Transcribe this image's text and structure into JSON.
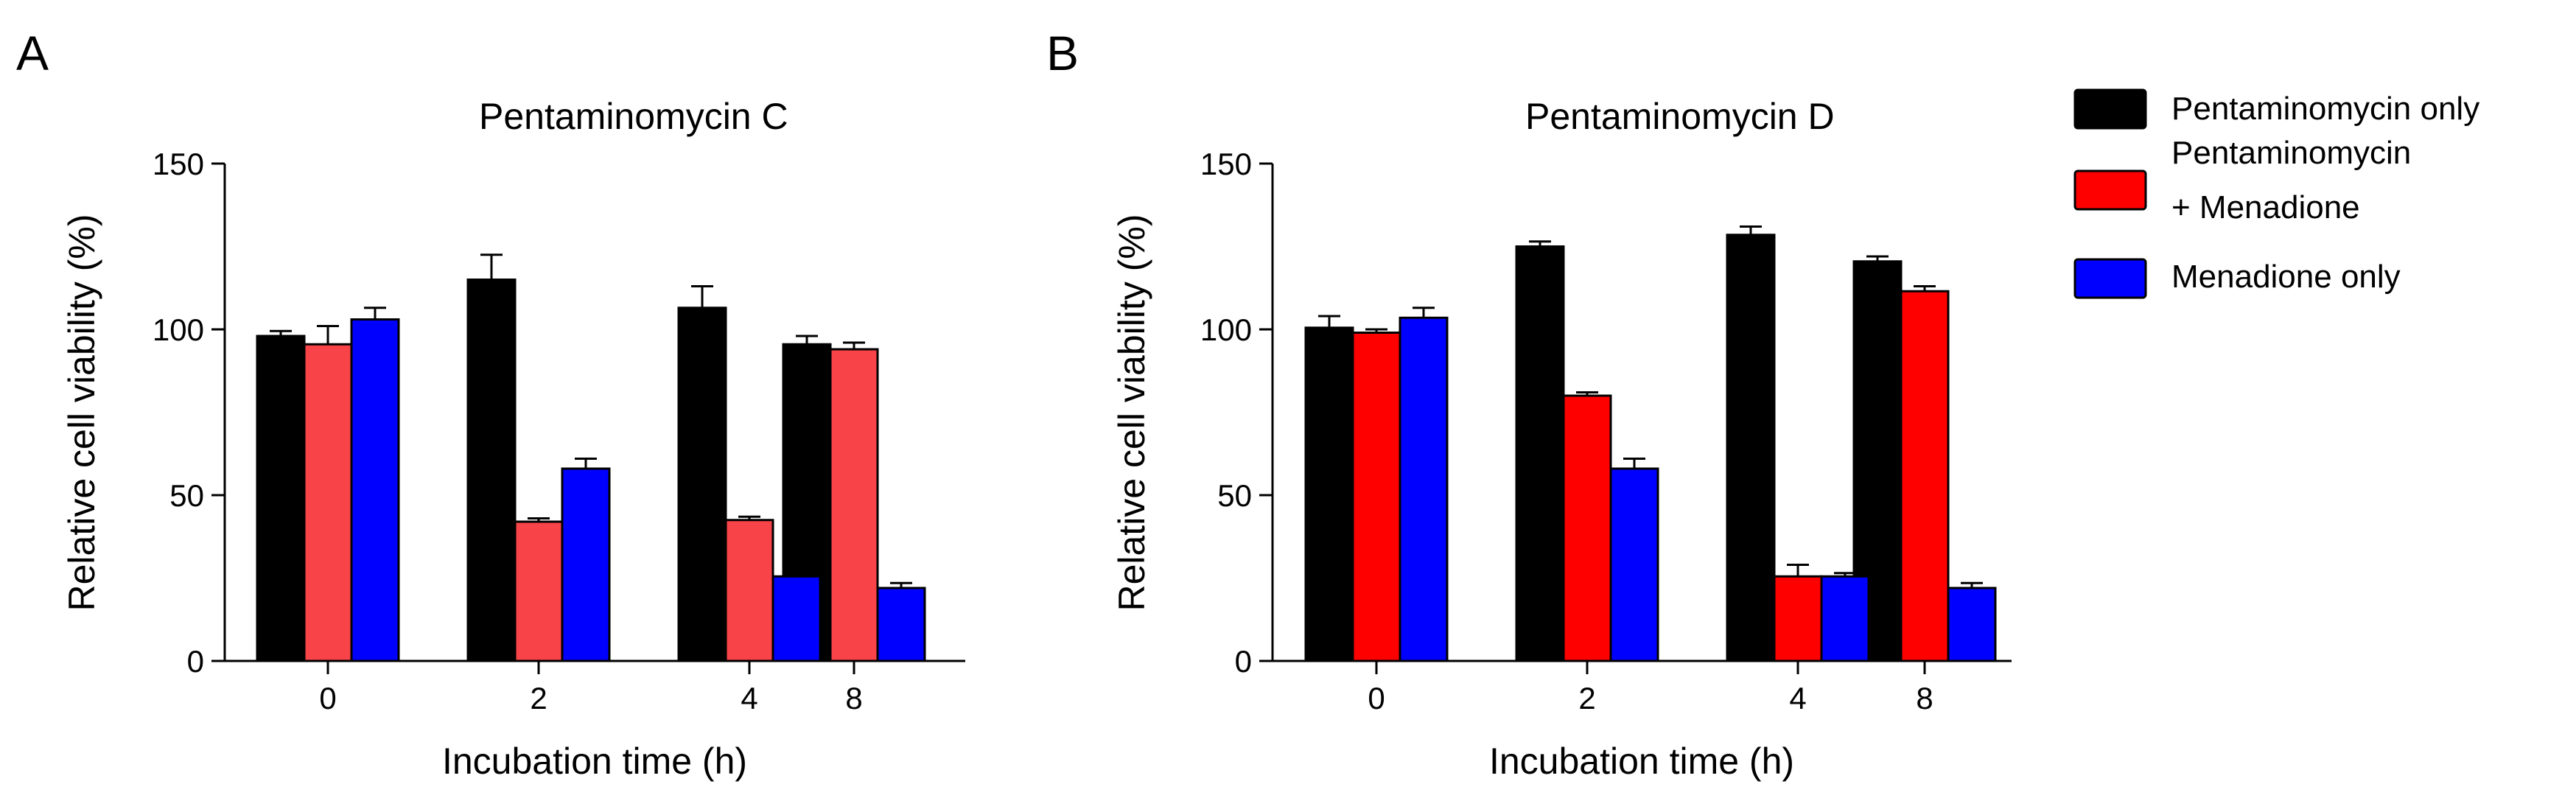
{
  "chart_data": [
    {
      "type": "bar",
      "panel": "A",
      "title": "Pentaminomycin C",
      "xlabel": "Incubation time (h)",
      "ylabel": "Relative cell viability (%)",
      "ylim": [
        0,
        150
      ],
      "yticks": [
        0,
        50,
        100,
        150
      ],
      "categories": [
        "0",
        "2",
        "4",
        "8"
      ],
      "grid": false,
      "series": [
        {
          "name": "Pentaminomycin only",
          "color": "#000000",
          "values": [
            98,
            115,
            106.5,
            95.5
          ],
          "errors": [
            1.5,
            7.5,
            6.5,
            2.5
          ]
        },
        {
          "name": "Pentaminomycin\n + Menadione",
          "color": "#f84448",
          "values": [
            95.5,
            42,
            42.5,
            94
          ],
          "errors": [
            5.5,
            1,
            1,
            2
          ]
        },
        {
          "name": "Menadione only",
          "color": "#0000ff",
          "values": [
            103,
            58,
            25.5,
            22
          ],
          "errors": [
            3.5,
            3,
            1,
            1.5
          ]
        }
      ]
    },
    {
      "type": "bar",
      "panel": "B",
      "title": "Pentaminomycin D",
      "xlabel": "Incubation time (h)",
      "ylabel": "Relative cell viability (%)",
      "ylim": [
        0,
        150
      ],
      "yticks": [
        0,
        50,
        100,
        150
      ],
      "categories": [
        "0",
        "2",
        "4",
        "8"
      ],
      "grid": false,
      "series": [
        {
          "name": "Pentaminomycin only",
          "color": "#000000",
          "values": [
            100.5,
            125,
            128.5,
            120.5
          ],
          "errors": [
            3.5,
            1.5,
            2.5,
            1.5
          ]
        },
        {
          "name": "Pentaminomycin\n + Menadione",
          "color": "#ff0000",
          "values": [
            99,
            80,
            25.5,
            111.5
          ],
          "errors": [
            1,
            1,
            3.5,
            1.5
          ]
        },
        {
          "name": "Menadione only",
          "color": "#0000ff",
          "values": [
            103.5,
            58,
            25.5,
            22
          ],
          "errors": [
            3,
            3,
            1,
            1.5
          ]
        }
      ]
    }
  ],
  "legend": {
    "placement": "right",
    "items": [
      {
        "label_lines": [
          "Pentaminomycin only"
        ],
        "color": "#000000"
      },
      {
        "label_lines": [
          "Pentaminomycin",
          " + Menadione"
        ],
        "color": "#ff0000"
      },
      {
        "label_lines": [
          "Menadione only"
        ],
        "color": "#0000ff"
      }
    ]
  }
}
